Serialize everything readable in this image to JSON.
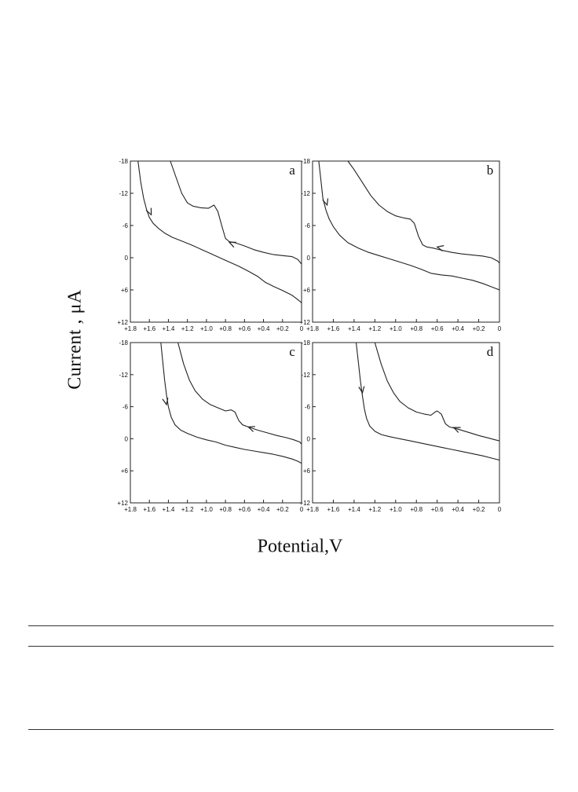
{
  "figure": {
    "ylabel": "Current , μA",
    "xlabel": "Potential,V"
  },
  "chart_data": [
    {
      "type": "line",
      "panel_label": "a",
      "xlim": [
        1.8,
        0
      ],
      "ylim": [
        -18,
        12
      ],
      "xticks": [
        1.8,
        1.6,
        1.4,
        1.2,
        1.0,
        0.8,
        0.6,
        0.4,
        0.2,
        0
      ],
      "xtick_labels": [
        "+1.8",
        "+1.6",
        "+1.4",
        "+1.2",
        "+1.0",
        "+0.8",
        "+0.6",
        "+0.4",
        "+0.2",
        "0"
      ],
      "yticks": [
        -18,
        -12,
        -6,
        0,
        6,
        12
      ],
      "ytick_labels": [
        "-18",
        "-12",
        "-6",
        "0",
        "+6",
        "+12"
      ],
      "grid": false,
      "series": [
        {
          "x": [
            1.72,
            1.69,
            1.66,
            1.63,
            1.6,
            1.56,
            1.5,
            1.44,
            1.36,
            1.26,
            1.16,
            1.06,
            0.96,
            0.86,
            0.76,
            0.66,
            0.56,
            0.46,
            0.38,
            0.3,
            0.2,
            0.1,
            0.04,
            0
          ],
          "y": [
            -18,
            -14,
            -11,
            -9,
            -7.5,
            -6.4,
            -5.4,
            -4.6,
            -3.8,
            -3.1,
            -2.4,
            -1.6,
            -0.8,
            0,
            0.8,
            1.6,
            2.5,
            3.5,
            4.6,
            5.3,
            6.1,
            7,
            7.8,
            8.4
          ]
        },
        {
          "x": [
            1.38,
            1.32,
            1.26,
            1.2,
            1.14,
            1.06,
            0.98,
            0.92,
            0.88,
            0.84,
            0.8,
            0.76,
            0.7,
            0.6,
            0.5,
            0.4,
            0.3,
            0.2,
            0.1,
            0.04,
            0
          ],
          "y": [
            -18,
            -15,
            -12,
            -10.2,
            -9.6,
            -9.3,
            -9.2,
            -9.8,
            -8.6,
            -6,
            -3.6,
            -3,
            -2.8,
            -2.2,
            -1.5,
            -1,
            -0.6,
            -0.4,
            -0.2,
            0.3,
            1.2
          ]
        }
      ],
      "arrows": [
        {
          "x": 1.58,
          "y": -8
        },
        {
          "x": 0.76,
          "y": -2.9
        }
      ]
    },
    {
      "type": "line",
      "panel_label": "b",
      "xlim": [
        1.8,
        0
      ],
      "ylim": [
        -18,
        12
      ],
      "xticks": [
        1.8,
        1.6,
        1.4,
        1.2,
        1.0,
        0.8,
        0.6,
        0.4,
        0.2,
        0
      ],
      "xtick_labels": [
        "+1.8",
        "+1.6",
        "+1.4",
        "+1.2",
        "+1.0",
        "+0.8",
        "+0.6",
        "+0.4",
        "+0.2",
        "0"
      ],
      "yticks": [
        -18,
        -12,
        -6,
        0,
        6,
        12
      ],
      "ytick_labels": [
        "-18",
        "-12",
        "-6",
        "0",
        "+6",
        "+12"
      ],
      "grid": false,
      "series": [
        {
          "x": [
            1.74,
            1.72,
            1.7,
            1.67,
            1.64,
            1.6,
            1.54,
            1.46,
            1.36,
            1.26,
            1.16,
            1.06,
            0.96,
            0.86,
            0.76,
            0.66,
            0.56,
            0.46,
            0.36,
            0.26,
            0.16,
            0.08,
            0
          ],
          "y": [
            -18,
            -14.5,
            -11,
            -8.8,
            -7.2,
            -5.8,
            -4.2,
            -2.8,
            -1.8,
            -1,
            -0.4,
            0.2,
            0.8,
            1.4,
            2.1,
            2.9,
            3.2,
            3.4,
            3.8,
            4.2,
            4.8,
            5.4,
            6
          ]
        },
        {
          "x": [
            1.46,
            1.4,
            1.32,
            1.24,
            1.16,
            1.08,
            1.0,
            0.92,
            0.86,
            0.82,
            0.78,
            0.74,
            0.7,
            0.64,
            0.56,
            0.46,
            0.36,
            0.26,
            0.16,
            0.08,
            0.02,
            0
          ],
          "y": [
            -18,
            -16.4,
            -14,
            -11.6,
            -9.8,
            -8.6,
            -7.8,
            -7.4,
            -7.2,
            -6.4,
            -4,
            -2.4,
            -2,
            -1.8,
            -1.4,
            -1,
            -0.7,
            -0.5,
            -0.3,
            0,
            0.6,
            1
          ]
        }
      ],
      "arrows": [
        {
          "x": 1.66,
          "y": -9.8
        },
        {
          "x": 0.6,
          "y": -2
        }
      ]
    },
    {
      "type": "line",
      "panel_label": "c",
      "xlim": [
        1.8,
        0
      ],
      "ylim": [
        -18,
        12
      ],
      "xticks": [
        1.8,
        1.6,
        1.4,
        1.2,
        1.0,
        0.8,
        0.6,
        0.4,
        0.2,
        0
      ],
      "xtick_labels": [
        "+1.8",
        "+1.6",
        "+1.4",
        "+1.2",
        "+1.0",
        "+0.8",
        "+0.6",
        "+0.4",
        "+0.2",
        "0"
      ],
      "yticks": [
        -18,
        -12,
        -6,
        0,
        6,
        12
      ],
      "ytick_labels": [
        "-18",
        "-12",
        "-6",
        "0",
        "+6",
        "+12"
      ],
      "grid": false,
      "series": [
        {
          "x": [
            1.48,
            1.46,
            1.44,
            1.42,
            1.4,
            1.37,
            1.33,
            1.27,
            1.2,
            1.1,
            1.0,
            0.9,
            0.8,
            0.7,
            0.6,
            0.5,
            0.4,
            0.3,
            0.2,
            0.1,
            0.04,
            0
          ],
          "y": [
            -18,
            -14.5,
            -11,
            -8.2,
            -6,
            -4,
            -2.6,
            -1.6,
            -1,
            -0.3,
            0.2,
            0.6,
            1.2,
            1.6,
            2,
            2.3,
            2.6,
            2.9,
            3.3,
            3.8,
            4.2,
            4.6
          ]
        },
        {
          "x": [
            1.3,
            1.24,
            1.18,
            1.12,
            1.04,
            0.96,
            0.88,
            0.8,
            0.74,
            0.7,
            0.66,
            0.62,
            0.56,
            0.46,
            0.36,
            0.26,
            0.16,
            0.08,
            0.02,
            0
          ],
          "y": [
            -18,
            -14,
            -11,
            -9,
            -7.4,
            -6.4,
            -5.8,
            -5.2,
            -5.4,
            -5,
            -3.4,
            -2.6,
            -2.2,
            -1.6,
            -1.1,
            -0.6,
            -0.2,
            0.2,
            0.6,
            1
          ]
        }
      ],
      "arrows": [
        {
          "x": 1.42,
          "y": -6.4
        },
        {
          "x": 0.56,
          "y": -2.2
        }
      ]
    },
    {
      "type": "line",
      "panel_label": "d",
      "xlim": [
        1.8,
        0
      ],
      "ylim": [
        -18,
        12
      ],
      "xticks": [
        1.8,
        1.6,
        1.4,
        1.2,
        1.0,
        0.8,
        0.6,
        0.4,
        0.2,
        0
      ],
      "xtick_labels": [
        "+1.8",
        "+1.6",
        "+1.4",
        "+1.2",
        "+1.0",
        "+0.8",
        "+0.6",
        "+0.4",
        "+0.2",
        "0"
      ],
      "yticks": [
        -18,
        -12,
        -6,
        0,
        6,
        12
      ],
      "ytick_labels": [
        "-18",
        "-12",
        "-6",
        "0",
        "+6",
        "+12"
      ],
      "grid": false,
      "series": [
        {
          "x": [
            1.38,
            1.36,
            1.34,
            1.32,
            1.3,
            1.28,
            1.25,
            1.2,
            1.14,
            1.06,
            0.96,
            0.86,
            0.76,
            0.66,
            0.56,
            0.46,
            0.36,
            0.26,
            0.16,
            0.08,
            0
          ],
          "y": [
            -18,
            -14.5,
            -11,
            -8,
            -5.5,
            -3.8,
            -2.4,
            -1.4,
            -0.8,
            -0.4,
            0,
            0.4,
            0.8,
            1.2,
            1.6,
            2,
            2.4,
            2.8,
            3.2,
            3.6,
            4
          ]
        },
        {
          "x": [
            1.2,
            1.14,
            1.08,
            1.02,
            0.96,
            0.88,
            0.8,
            0.72,
            0.66,
            0.62,
            0.6,
            0.56,
            0.52,
            0.48,
            0.4,
            0.3,
            0.2,
            0.1,
            0.04,
            0
          ],
          "y": [
            -18,
            -14,
            -10.8,
            -8.6,
            -7,
            -5.8,
            -5,
            -4.6,
            -4.4,
            -5,
            -5.2,
            -4.6,
            -2.8,
            -2.2,
            -1.8,
            -1.2,
            -0.6,
            -0.1,
            0.2,
            0.4
          ]
        }
      ],
      "arrows": [
        {
          "x": 1.32,
          "y": -8.6
        },
        {
          "x": 0.44,
          "y": -2.1
        }
      ]
    }
  ]
}
